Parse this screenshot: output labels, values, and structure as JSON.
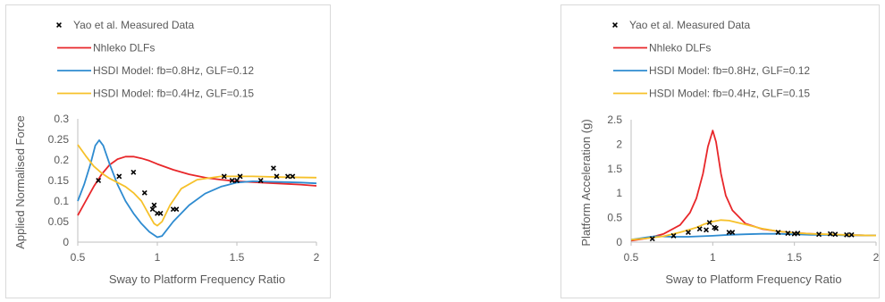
{
  "chart_data": [
    {
      "type": "line",
      "title": "",
      "xlabel": "Sway to Platform Frequency Ratio",
      "ylabel": "Applied Normalised Force",
      "xlim": [
        0.5,
        2
      ],
      "ylim": [
        0,
        0.3
      ],
      "x_ticks": [
        "0.5",
        "1",
        "1.5",
        "2"
      ],
      "y_ticks": [
        "0",
        "0.05",
        "0.1",
        "0.15",
        "0.2",
        "0.25",
        "0.3"
      ],
      "grid": false,
      "legend_position": "top-left",
      "series": [
        {
          "name": "Yao et al. Measured Data",
          "type": "scatter",
          "marker": "x",
          "color": "#000000",
          "points": [
            [
              0.63,
              0.15
            ],
            [
              0.76,
              0.16
            ],
            [
              0.85,
              0.17
            ],
            [
              0.92,
              0.12
            ],
            [
              0.97,
              0.08
            ],
            [
              0.98,
              0.09
            ],
            [
              1.0,
              0.07
            ],
            [
              1.02,
              0.07
            ],
            [
              1.1,
              0.08
            ],
            [
              1.12,
              0.08
            ],
            [
              1.42,
              0.16
            ],
            [
              1.47,
              0.15
            ],
            [
              1.5,
              0.15
            ],
            [
              1.52,
              0.16
            ],
            [
              1.65,
              0.15
            ],
            [
              1.73,
              0.18
            ],
            [
              1.75,
              0.16
            ],
            [
              1.82,
              0.16
            ],
            [
              1.85,
              0.16
            ]
          ]
        },
        {
          "name": "Nhleko DLFs",
          "type": "line",
          "color": "#e8272a",
          "points": [
            [
              0.5,
              0.065
            ],
            [
              0.55,
              0.1
            ],
            [
              0.6,
              0.135
            ],
            [
              0.65,
              0.165
            ],
            [
              0.7,
              0.188
            ],
            [
              0.75,
              0.202
            ],
            [
              0.8,
              0.208
            ],
            [
              0.85,
              0.208
            ],
            [
              0.9,
              0.204
            ],
            [
              0.95,
              0.198
            ],
            [
              1.0,
              0.19
            ],
            [
              1.1,
              0.176
            ],
            [
              1.2,
              0.165
            ],
            [
              1.3,
              0.157
            ],
            [
              1.4,
              0.152
            ],
            [
              1.5,
              0.148
            ],
            [
              1.6,
              0.146
            ],
            [
              1.7,
              0.144
            ],
            [
              1.8,
              0.142
            ],
            [
              1.9,
              0.14
            ],
            [
              2.0,
              0.137
            ]
          ]
        },
        {
          "name": "HSDI Model: fb=0.8Hz, GLF=0.12",
          "type": "line",
          "color": "#2e8bd0",
          "points": [
            [
              0.5,
              0.1
            ],
            [
              0.54,
              0.14
            ],
            [
              0.58,
              0.19
            ],
            [
              0.61,
              0.235
            ],
            [
              0.635,
              0.248
            ],
            [
              0.66,
              0.235
            ],
            [
              0.7,
              0.19
            ],
            [
              0.75,
              0.14
            ],
            [
              0.8,
              0.1
            ],
            [
              0.85,
              0.07
            ],
            [
              0.9,
              0.045
            ],
            [
              0.95,
              0.025
            ],
            [
              1.0,
              0.012
            ],
            [
              1.03,
              0.015
            ],
            [
              1.1,
              0.05
            ],
            [
              1.2,
              0.09
            ],
            [
              1.3,
              0.118
            ],
            [
              1.4,
              0.135
            ],
            [
              1.5,
              0.145
            ],
            [
              1.6,
              0.148
            ],
            [
              1.7,
              0.147
            ],
            [
              1.8,
              0.146
            ],
            [
              1.9,
              0.145
            ],
            [
              2.0,
              0.143
            ]
          ]
        },
        {
          "name": "HSDI Model: fb=0.4Hz, GLF=0.15",
          "type": "line",
          "color": "#f6c12a",
          "points": [
            [
              0.5,
              0.237
            ],
            [
              0.55,
              0.21
            ],
            [
              0.6,
              0.185
            ],
            [
              0.65,
              0.168
            ],
            [
              0.7,
              0.155
            ],
            [
              0.75,
              0.145
            ],
            [
              0.8,
              0.135
            ],
            [
              0.85,
              0.12
            ],
            [
              0.9,
              0.1
            ],
            [
              0.95,
              0.065
            ],
            [
              0.98,
              0.045
            ],
            [
              1.0,
              0.04
            ],
            [
              1.03,
              0.05
            ],
            [
              1.08,
              0.09
            ],
            [
              1.15,
              0.13
            ],
            [
              1.25,
              0.152
            ],
            [
              1.4,
              0.16
            ],
            [
              1.6,
              0.16
            ],
            [
              1.8,
              0.158
            ],
            [
              2.0,
              0.157
            ]
          ]
        }
      ]
    },
    {
      "type": "line",
      "title": "",
      "xlabel": "Sway to Platform Frequency Ratio",
      "ylabel": "Platform Acceleration (g)",
      "xlim": [
        0.5,
        2
      ],
      "ylim": [
        0,
        2.5
      ],
      "x_ticks": [
        "0.5",
        "1",
        "1.5",
        "2"
      ],
      "y_ticks": [
        "0",
        "0.5",
        "1",
        "1.5",
        "2",
        "2.5"
      ],
      "grid": false,
      "legend_position": "top-left",
      "series": [
        {
          "name": "Yao et al. Measured Data",
          "type": "scatter",
          "marker": "x",
          "color": "#000000",
          "points": [
            [
              0.63,
              0.07
            ],
            [
              0.76,
              0.13
            ],
            [
              0.85,
              0.2
            ],
            [
              0.92,
              0.27
            ],
            [
              0.96,
              0.25
            ],
            [
              0.98,
              0.4
            ],
            [
              1.01,
              0.3
            ],
            [
              1.02,
              0.28
            ],
            [
              1.1,
              0.2
            ],
            [
              1.12,
              0.2
            ],
            [
              1.4,
              0.2
            ],
            [
              1.46,
              0.18
            ],
            [
              1.5,
              0.17
            ],
            [
              1.52,
              0.18
            ],
            [
              1.65,
              0.16
            ],
            [
              1.72,
              0.17
            ],
            [
              1.75,
              0.16
            ],
            [
              1.82,
              0.15
            ],
            [
              1.85,
              0.15
            ]
          ]
        },
        {
          "name": "Nhleko DLFs",
          "type": "line",
          "color": "#e8272a",
          "points": [
            [
              0.5,
              0.03
            ],
            [
              0.6,
              0.08
            ],
            [
              0.7,
              0.17
            ],
            [
              0.8,
              0.35
            ],
            [
              0.86,
              0.6
            ],
            [
              0.9,
              0.9
            ],
            [
              0.94,
              1.4
            ],
            [
              0.97,
              1.95
            ],
            [
              1.0,
              2.28
            ],
            [
              1.02,
              2.05
            ],
            [
              1.05,
              1.4
            ],
            [
              1.08,
              0.95
            ],
            [
              1.12,
              0.65
            ],
            [
              1.2,
              0.38
            ],
            [
              1.3,
              0.27
            ],
            [
              1.4,
              0.22
            ],
            [
              1.5,
              0.19
            ],
            [
              1.6,
              0.17
            ],
            [
              1.7,
              0.155
            ],
            [
              1.8,
              0.145
            ],
            [
              1.9,
              0.14
            ],
            [
              2.0,
              0.135
            ]
          ]
        },
        {
          "name": "HSDI Model: fb=0.8Hz, GLF=0.12",
          "type": "line",
          "color": "#2e8bd0",
          "points": [
            [
              0.5,
              0.05
            ],
            [
              0.6,
              0.1
            ],
            [
              0.65,
              0.12
            ],
            [
              0.75,
              0.11
            ],
            [
              0.85,
              0.11
            ],
            [
              1.0,
              0.13
            ],
            [
              1.1,
              0.15
            ],
            [
              1.2,
              0.16
            ],
            [
              1.3,
              0.17
            ],
            [
              1.4,
              0.17
            ],
            [
              1.5,
              0.16
            ],
            [
              1.6,
              0.15
            ],
            [
              1.7,
              0.15
            ],
            [
              1.8,
              0.14
            ],
            [
              1.9,
              0.14
            ],
            [
              2.0,
              0.135
            ]
          ]
        },
        {
          "name": "HSDI Model: fb=0.4Hz, GLF=0.15",
          "type": "line",
          "color": "#f6c12a",
          "points": [
            [
              0.5,
              0.05
            ],
            [
              0.6,
              0.08
            ],
            [
              0.7,
              0.12
            ],
            [
              0.8,
              0.2
            ],
            [
              0.9,
              0.3
            ],
            [
              0.95,
              0.37
            ],
            [
              1.0,
              0.42
            ],
            [
              1.05,
              0.45
            ],
            [
              1.1,
              0.44
            ],
            [
              1.2,
              0.36
            ],
            [
              1.3,
              0.28
            ],
            [
              1.4,
              0.22
            ],
            [
              1.5,
              0.19
            ],
            [
              1.6,
              0.17
            ],
            [
              1.7,
              0.16
            ],
            [
              1.8,
              0.15
            ],
            [
              1.9,
              0.14
            ],
            [
              2.0,
              0.135
            ]
          ]
        }
      ]
    }
  ]
}
